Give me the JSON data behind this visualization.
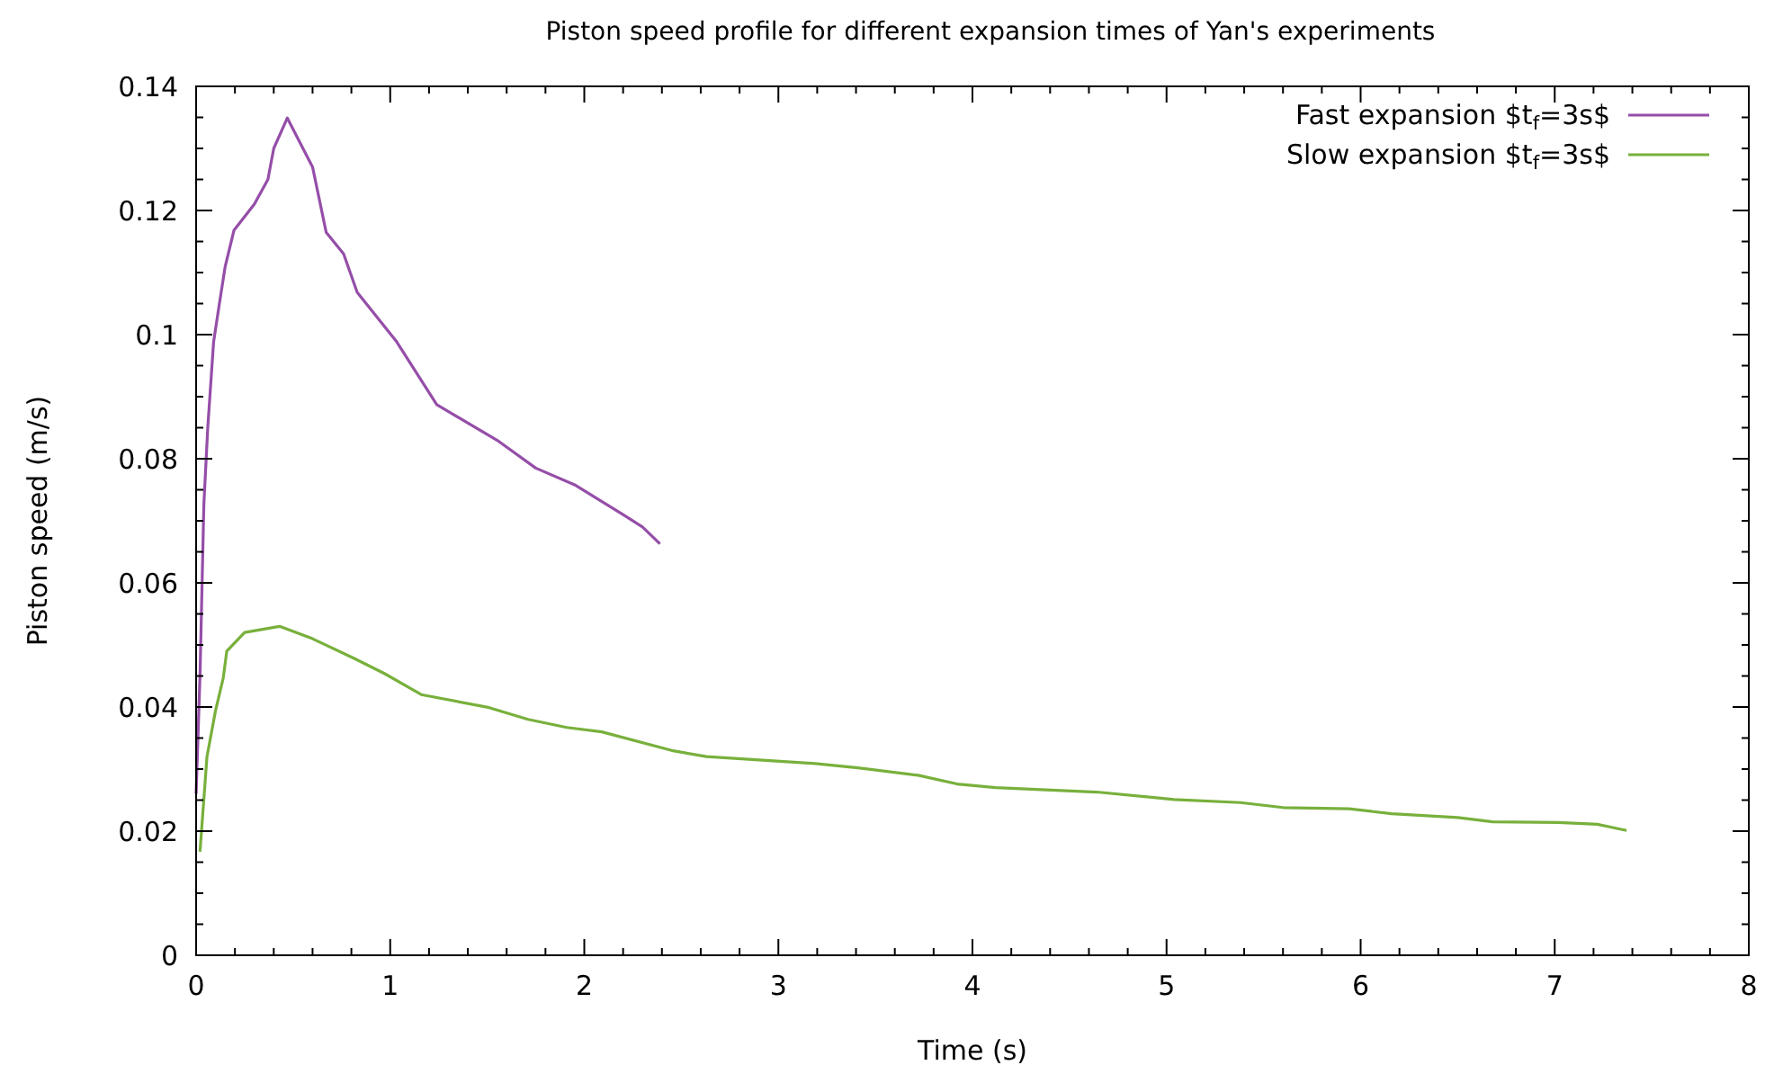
{
  "chart_data": {
    "type": "line",
    "title": "Piston speed profile for different expansion times of Yan's experiments",
    "xlabel": "Time (s)",
    "ylabel": "Piston speed (m/s)",
    "xlim": [
      0,
      8
    ],
    "xticks": [
      0,
      1,
      2,
      3,
      4,
      5,
      6,
      7,
      8
    ],
    "ylim": [
      0,
      0.14
    ],
    "yticks": [
      0,
      0.02,
      0.04,
      0.06,
      0.08,
      0.1,
      0.12,
      0.14
    ],
    "legend": "top right",
    "grid": false,
    "marker": "none",
    "line_style": "solid",
    "series": [
      {
        "name": "Fast expansion $t$_{f}$=3s$",
        "color": "#954ea8",
        "x": [
          0,
          0.02,
          0.04,
          0.06,
          0.09,
          0.12,
          0.15,
          0.195,
          0.3,
          0.37,
          0.4,
          0.47,
          0.6,
          0.67,
          0.76,
          0.83,
          1.03,
          1.24,
          1.55,
          1.75,
          1.95,
          2.2,
          2.3,
          2.39
        ],
        "values": [
          0.026,
          0.045,
          0.0727,
          0.085,
          0.0988,
          0.105,
          0.111,
          0.1168,
          0.121,
          0.125,
          0.13,
          0.1349,
          0.127,
          0.1165,
          0.113,
          0.1068,
          0.099,
          0.0887,
          0.083,
          0.0785,
          0.0758,
          0.071,
          0.069,
          0.0663
        ]
      },
      {
        "name": "Slow expansion $t$_{f}$=3s$",
        "color": "#78b03c",
        "x": [
          0.02,
          0.056,
          0.1,
          0.14,
          0.158,
          0.25,
          0.43,
          0.6,
          0.81,
          0.97,
          1.16,
          1.51,
          1.71,
          1.91,
          2.09,
          2.45,
          2.63,
          3.19,
          3.41,
          3.72,
          3.92,
          4.12,
          4.64,
          5.04,
          5.38,
          5.6,
          5.94,
          6.16,
          6.5,
          6.68,
          7.02,
          7.22,
          7.37
        ],
        "values": [
          0.0167,
          0.032,
          0.0394,
          0.0447,
          0.049,
          0.052,
          0.053,
          0.051,
          0.0479,
          0.0454,
          0.042,
          0.0399,
          0.038,
          0.0367,
          0.036,
          0.033,
          0.032,
          0.0309,
          0.0302,
          0.029,
          0.0276,
          0.027,
          0.0263,
          0.0251,
          0.0246,
          0.0238,
          0.0236,
          0.0228,
          0.0222,
          0.0215,
          0.0214,
          0.0211,
          0.0201
        ]
      }
    ]
  }
}
